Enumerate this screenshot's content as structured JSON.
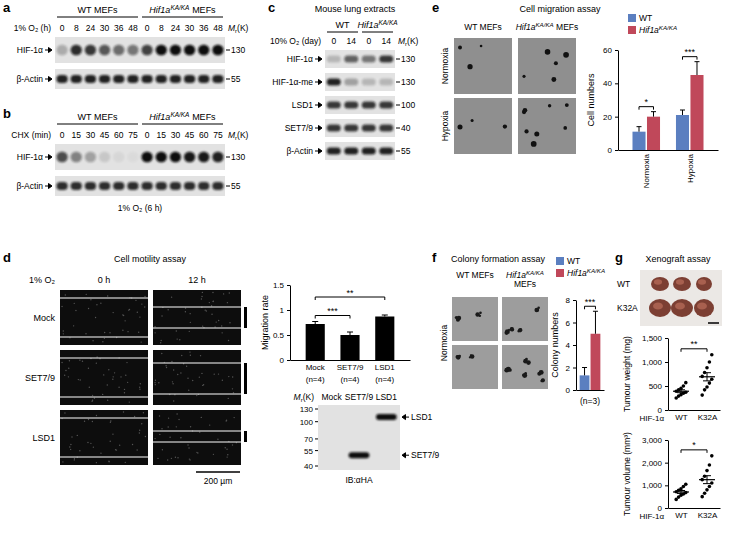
{
  "figure": {
    "a": {
      "letter": "a",
      "groups": [
        {
          "text": "WT MEFs"
        },
        {
          "gene": "Hif1a",
          "allele": "KA/KA",
          "suffix": "MEFs"
        }
      ],
      "condition": "1% O₂ (h)",
      "lanes": [
        "0",
        "8",
        "24",
        "30",
        "36",
        "48",
        "0",
        "8",
        "24",
        "30",
        "36",
        "48"
      ],
      "mr_title": {
        "base": "M",
        "sub": "r",
        "tail": "(K)"
      },
      "rows": [
        {
          "label": "HIF-1α",
          "marker": 130,
          "bands": [
            0.25,
            0.85,
            0.8,
            0.65,
            0.55,
            0.5,
            0.75,
            1,
            1,
            1,
            1,
            1
          ]
        },
        {
          "label": "β-Actin",
          "marker": 55,
          "bands": [
            0.9,
            0.9,
            0.9,
            0.9,
            0.9,
            0.9,
            0.9,
            0.9,
            0.9,
            0.9,
            0.9,
            0.9
          ]
        }
      ]
    },
    "b": {
      "letter": "b",
      "groups": [
        {
          "text": "WT MEFs"
        },
        {
          "gene": "Hif1a",
          "allele": "KA/KA",
          "suffix": "MEFs"
        }
      ],
      "condition": "CHX (min)",
      "lanes": [
        "0",
        "15",
        "30",
        "45",
        "60",
        "75",
        "0",
        "15",
        "30",
        "45",
        "60",
        "75"
      ],
      "mr_title": {
        "base": "M",
        "sub": "r",
        "tail": "(K)"
      },
      "rows": [
        {
          "label": "HIF-1α",
          "marker": 130,
          "bands": [
            0.7,
            0.45,
            0.3,
            0.12,
            0.05,
            0.03,
            1,
            1,
            1,
            0.95,
            0.95,
            0.9
          ]
        },
        {
          "label": "β-Actin",
          "marker": 55,
          "bands": [
            0.85,
            0.85,
            0.85,
            0.85,
            0.85,
            0.85,
            0.85,
            0.85,
            0.85,
            0.85,
            0.85,
            0.85
          ]
        }
      ],
      "caption": "1% O₂ (6 h)"
    },
    "c": {
      "letter": "c",
      "title": "Mouse lung extracts",
      "groups": [
        {
          "text": "WT"
        },
        {
          "gene": "Hif1a",
          "allele": "KA/KA"
        }
      ],
      "condition": "10% O₂ (day)",
      "lanes": [
        "0",
        "14",
        "0",
        "14"
      ],
      "mr_title": {
        "base": "M",
        "sub": "r",
        "tail": "(K)"
      },
      "rows": [
        {
          "label": "HIF-1α",
          "marker": 130,
          "bands": [
            0.2,
            0.6,
            0.5,
            0.8
          ]
        },
        {
          "label": "HIF-1α-me",
          "marker": 130,
          "bands": [
            0.9,
            0.3,
            0.2,
            0.2
          ]
        },
        {
          "label": "LSD1",
          "marker": 100,
          "bands": [
            0.8,
            0.8,
            0.8,
            0.8
          ]
        },
        {
          "label": "SET7/9",
          "marker": 40,
          "bands": [
            0.8,
            0.8,
            0.8,
            0.8
          ]
        },
        {
          "label": "β-Actin",
          "marker": 55,
          "bands": [
            0.9,
            0.9,
            0.9,
            0.9
          ]
        }
      ]
    },
    "d": {
      "letter": "d",
      "title": "Cell motility assay",
      "condition": "1% O₂",
      "times": [
        "0 h",
        "12 h"
      ],
      "rows": [
        "Mock",
        "SET7/9",
        "LSD1"
      ],
      "scale_bar": "200 µm",
      "blot": {
        "mr_title": {
          "base": "M",
          "sub": "r",
          "tail": "(K)"
        },
        "lanes": [
          "Mock",
          "SET7/9",
          "LSD1"
        ],
        "markers": [
          130,
          100,
          70,
          55,
          40
        ],
        "bands": [
          {
            "lane": 1,
            "mr": 50,
            "label": "SET7/9"
          },
          {
            "lane": 2,
            "mr": 110,
            "label": "LSD1"
          }
        ],
        "antibody": "IB:αHA"
      }
    },
    "e": {
      "letter": "e",
      "title": "Cell migration assay",
      "columns": [
        {
          "text": "WT MEFs"
        },
        {
          "gene": "Hif1a",
          "allele": "KA/KA",
          "suffix": "MEFs"
        }
      ],
      "rows": [
        "Normoxia",
        "Hypoxia"
      ]
    },
    "f": {
      "letter": "f",
      "title": "Colony formation assay",
      "columns": [
        {
          "text": "WT MEFs"
        },
        {
          "gene": "Hif1a",
          "allele": "KA/KA",
          "suffix": "MEFs"
        }
      ],
      "rows": [
        "Normoxia"
      ]
    },
    "g": {
      "letter": "g",
      "title": "Xenograft assay",
      "photo_rows": [
        "WT",
        "K32A"
      ]
    }
  },
  "chart_data": [
    {
      "type": "bar",
      "y_label": "Migration rate",
      "categories": [
        "Mock",
        "SET7/9",
        "LSD1"
      ],
      "n_labels": [
        "(n=4)",
        "(n=4)",
        "(n=4)"
      ],
      "values": [
        0.72,
        0.5,
        0.87
      ],
      "errors": [
        0.05,
        0.06,
        0.03
      ],
      "color": "#000000",
      "ylim": [
        0,
        1.5
      ],
      "yticks": [
        0,
        0.5,
        1,
        1.5
      ],
      "significance": [
        {
          "from": 0,
          "to": 1,
          "label": "***"
        },
        {
          "from": 0,
          "to": 2,
          "label": "**"
        }
      ]
    },
    {
      "type": "bar",
      "y_label": "Cell numbers",
      "categories": [
        "Normoxia",
        "Hypoxia"
      ],
      "series": [
        {
          "name": "WT",
          "color": "#5b7fc0",
          "values": [
            11,
            21
          ],
          "errors": [
            3,
            3
          ]
        },
        {
          "name": "Hif1a",
          "allele": "KA/KA",
          "color": "#c0485a",
          "values": [
            20,
            45
          ],
          "errors": [
            3,
            8
          ]
        }
      ],
      "ylim": [
        0,
        60
      ],
      "yticks": [
        0,
        20,
        40,
        60
      ],
      "legend": "top",
      "significance": [
        {
          "category": 0,
          "label": "*"
        },
        {
          "category": 1,
          "label": "***"
        }
      ]
    },
    {
      "type": "bar",
      "y_label": "Colony numbers",
      "categories": [
        null
      ],
      "series": [
        {
          "name": "WT",
          "color": "#5b7fc0",
          "values": [
            1.3
          ],
          "errors": [
            0.7
          ]
        },
        {
          "name": "Hif1a",
          "allele": "KA/KA",
          "color": "#c0485a",
          "values": [
            5.0
          ],
          "errors": [
            2.0
          ]
        }
      ],
      "ylim": [
        0,
        8
      ],
      "yticks": [
        0,
        2,
        4,
        6,
        8
      ],
      "legend": "top",
      "tick_labels": "y",
      "significance": [
        {
          "category": 0,
          "label": "***"
        }
      ],
      "annotation": "(n=3)"
    },
    {
      "type": "scatter",
      "y_label": "Tumour weight (mg)",
      "x_label": "HIF-1α",
      "categories": [
        "WT",
        "K32A"
      ],
      "points": [
        [
          250,
          290,
          320,
          350,
          370,
          390,
          420,
          450,
          500,
          570
        ],
        [
          310,
          420,
          480,
          560,
          640,
          700,
          780,
          880,
          1000,
          1150
        ]
      ],
      "means": [
        391,
        692
      ],
      "errors": [
        30,
        85
      ],
      "ylim": [
        0,
        1500
      ],
      "yticks": [
        0,
        500,
        {
          "value": 1000,
          "label": "1,000"
        },
        {
          "value": 1500,
          "label": "1,500"
        }
      ],
      "significance": [
        {
          "from": 0,
          "to": 1,
          "label": "**"
        }
      ]
    },
    {
      "type": "scatter",
      "y_label": "Tumour volume (mm³)",
      "x_label": "HIF-1α",
      "categories": [
        "WT",
        "K32A"
      ],
      "points": [
        [
          380,
          480,
          560,
          620,
          680,
          720,
          780,
          850,
          950,
          1050
        ],
        [
          500,
          650,
          800,
          950,
          1100,
          1250,
          1400,
          1650,
          1900,
          2300
        ]
      ],
      "means": [
        707,
        1250
      ],
      "errors": [
        65,
        175
      ],
      "ylim": [
        0,
        3000
      ],
      "yticks": [
        0,
        {
          "value": 1000,
          "label": "1,000"
        },
        {
          "value": 2000,
          "label": "2,000"
        },
        {
          "value": 3000,
          "label": "3,000"
        }
      ],
      "significance": [
        {
          "from": 0,
          "to": 1,
          "label": "*"
        }
      ]
    }
  ]
}
